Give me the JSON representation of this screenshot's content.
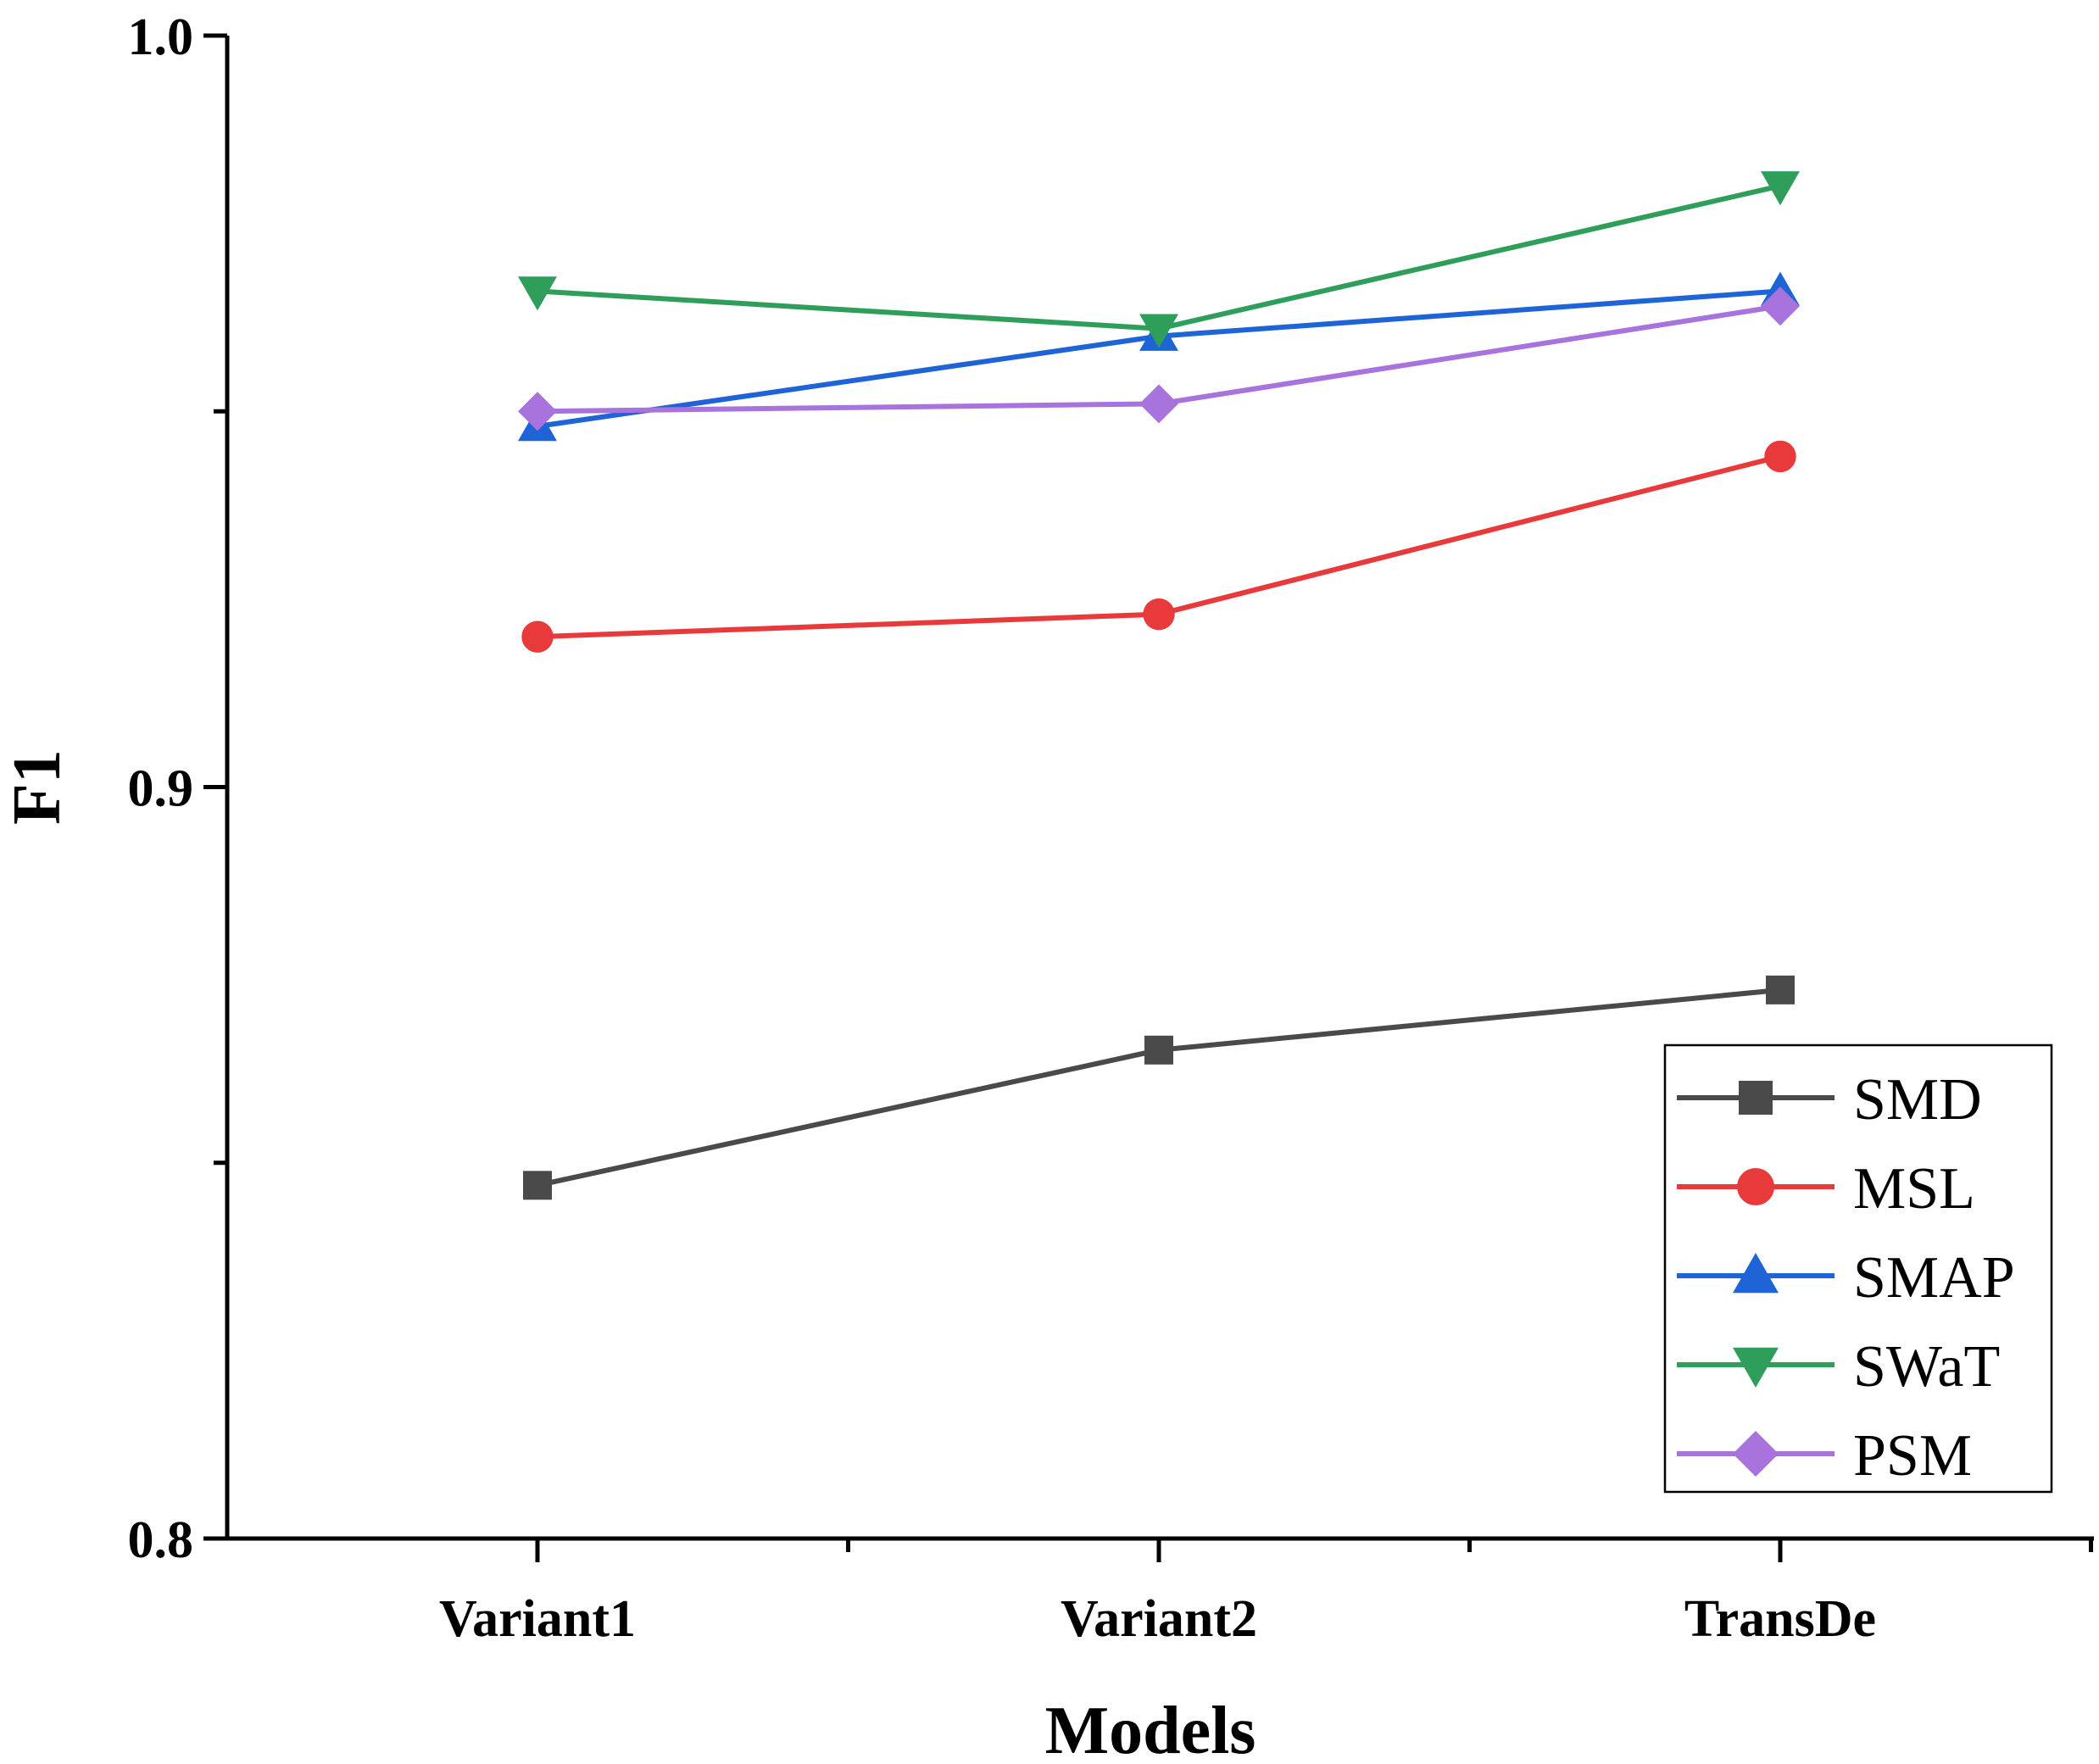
{
  "chart_data": {
    "type": "line",
    "title": "",
    "xlabel": "Models",
    "ylabel": "F1",
    "categories": [
      "Variant1",
      "Variant2",
      "TransDe"
    ],
    "ylim": [
      0.8,
      1.0
    ],
    "yticks": [
      "0.8",
      "0.9",
      "1.0"
    ],
    "legend_position": "bottom-right",
    "grid": false,
    "series": [
      {
        "name": "SMD",
        "marker": "square",
        "color": "#4a4a4a",
        "values": [
          0.847,
          0.865,
          0.873
        ]
      },
      {
        "name": "MSL",
        "marker": "circle",
        "color": "#e8393b",
        "values": [
          0.92,
          0.923,
          0.944
        ]
      },
      {
        "name": "SMAP",
        "marker": "triangle-up",
        "color": "#1f64d6",
        "values": [
          0.948,
          0.96,
          0.966
        ]
      },
      {
        "name": "SWaT",
        "marker": "triangle-down",
        "color": "#2f9e5b",
        "values": [
          0.966,
          0.961,
          0.98
        ]
      },
      {
        "name": "PSM",
        "marker": "diamond",
        "color": "#a873dc",
        "values": [
          0.95,
          0.951,
          0.964
        ]
      }
    ]
  }
}
